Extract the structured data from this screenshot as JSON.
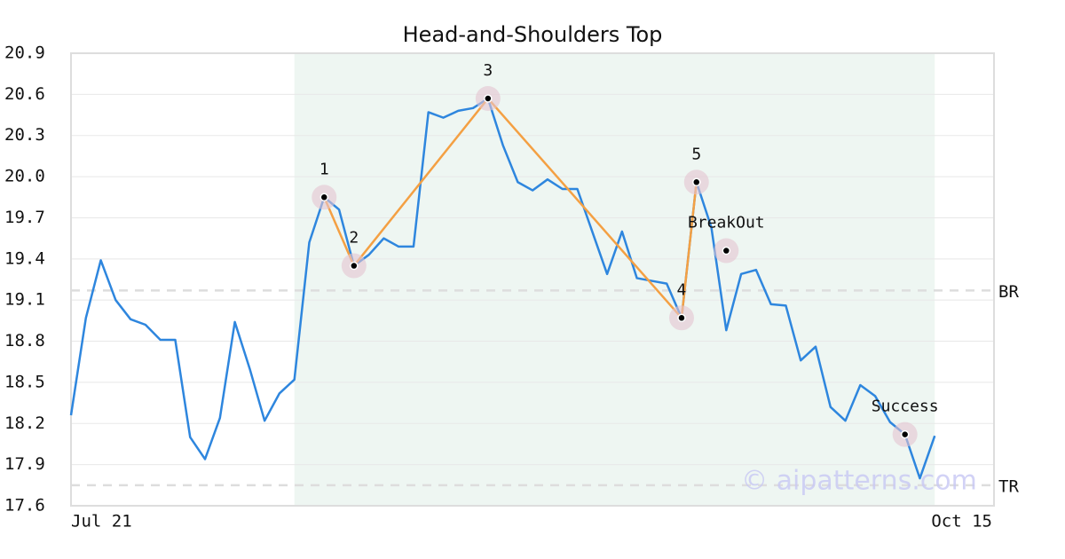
{
  "chart_data": {
    "type": "line",
    "title": "Head-and-Shoulders Top",
    "categories": [
      "Jul 21",
      null,
      null,
      null,
      null,
      null,
      null,
      null,
      null,
      null,
      null,
      null,
      null,
      null,
      null,
      null,
      null,
      null,
      null,
      null,
      null,
      null,
      null,
      null,
      null,
      null,
      null,
      null,
      null,
      null,
      null,
      null,
      null,
      null,
      null,
      null,
      null,
      null,
      null,
      null,
      null,
      null,
      null,
      null,
      null,
      null,
      null,
      null,
      null,
      null,
      null,
      null,
      null,
      null,
      null,
      null,
      null,
      null,
      "Oct 15"
    ],
    "values": [
      18.26,
      18.97,
      19.39,
      19.1,
      18.96,
      18.92,
      18.81,
      18.81,
      18.1,
      17.94,
      18.24,
      18.94,
      18.6,
      18.22,
      18.42,
      18.52,
      19.52,
      19.85,
      19.76,
      19.35,
      19.43,
      19.55,
      19.49,
      19.49,
      20.47,
      20.43,
      20.48,
      20.5,
      20.57,
      20.23,
      19.96,
      19.9,
      19.98,
      19.91,
      19.91,
      19.6,
      19.29,
      19.6,
      19.26,
      19.24,
      19.22,
      18.97,
      19.96,
      19.63,
      18.88,
      19.29,
      19.32,
      19.07,
      19.06,
      18.66,
      18.76,
      18.32,
      18.22,
      18.48,
      18.4,
      18.21,
      18.12,
      17.8,
      18.11
    ],
    "color": "#2e86de",
    "ylim": [
      17.6,
      20.9
    ],
    "yticks": [
      17.6,
      17.9,
      18.2,
      18.5,
      18.8,
      19.1,
      19.4,
      19.7,
      {
        "value": 20,
        "label": "20.0"
      },
      20.3,
      20.6,
      20.9
    ],
    "grid": true,
    "shade": {
      "x": [
        15,
        58
      ],
      "color": "#eef6f2"
    },
    "pattern": {
      "color": "#f4a043",
      "points": [
        {
          "label": "1",
          "x": 17,
          "value": 19.85
        },
        {
          "label": "2",
          "x": 19,
          "value": 19.35
        },
        {
          "label": "3",
          "x": 28,
          "value": 20.57
        },
        {
          "label": "4",
          "x": 41,
          "value": 18.97
        },
        {
          "label": "5",
          "x": 42,
          "value": 19.96
        }
      ]
    },
    "markers": [
      {
        "label": "BreakOut",
        "x": 44,
        "value": 19.46
      },
      {
        "label": "Success",
        "x": 56,
        "value": 18.12
      }
    ],
    "hlines": [
      {
        "label": "BR",
        "value": 19.17
      },
      {
        "label": "TR",
        "value": 17.75
      }
    ],
    "watermark": "© aipatterns.com"
  }
}
